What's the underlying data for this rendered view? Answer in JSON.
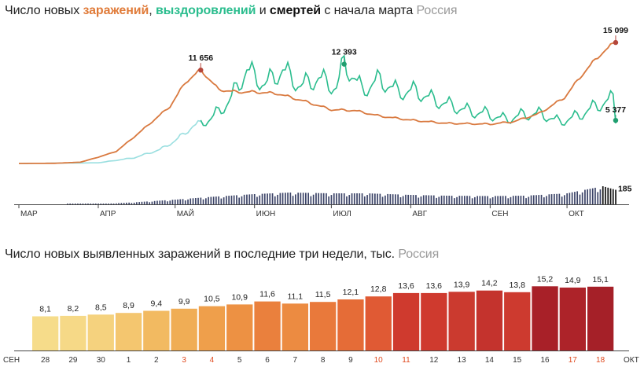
{
  "top_title": {
    "prefix": "Число новых ",
    "infections": "заражений",
    "comma": ", ",
    "recoveries": "выздоровлений",
    "and": " и ",
    "deaths": "смертей",
    "suffix": " с начала марта",
    "region": "Россия"
  },
  "bottom_title": {
    "text": "Число новых выявленных заражений в последние три недели, тыс.",
    "region": "Россия"
  },
  "colors": {
    "infections": "#d9793f",
    "recoveries": "#2bbd8e",
    "recoveries_early": "#9adfe0",
    "deaths_bars": "#3c4468",
    "deaths_last": "#111111",
    "axis": "#444444"
  },
  "chart_data": [
    {
      "type": "line",
      "title": "Число новых заражений, выздоровлений и смертей с начала марта",
      "x_ticks": [
        "МАР",
        "АПР",
        "МАЙ",
        "ИЮН",
        "ИЮЛ",
        "АВГ",
        "СЕН",
        "ОКТ"
      ],
      "x_range": [
        "2020-03-01",
        "2020-10-24"
      ],
      "y_range": [
        0,
        15500
      ],
      "grid": false,
      "series": [
        {
          "name": "заражений",
          "color": "#d9793f",
          "points": [
            [
              "2020-03-01",
              0
            ],
            [
              "2020-03-15",
              20
            ],
            [
              "2020-03-25",
              160
            ],
            [
              "2020-04-01",
              780
            ],
            [
              "2020-04-08",
              1500
            ],
            [
              "2020-04-15",
              3300
            ],
            [
              "2020-04-22",
              5200
            ],
            [
              "2020-04-29",
              7100
            ],
            [
              "2020-05-05",
              10100
            ],
            [
              "2020-05-11",
              11656
            ],
            [
              "2020-05-18",
              9200
            ],
            [
              "2020-05-25",
              8900
            ],
            [
              "2020-06-01",
              8900
            ],
            [
              "2020-06-10",
              8700
            ],
            [
              "2020-06-20",
              7800
            ],
            [
              "2020-07-01",
              6700
            ],
            [
              "2020-07-10",
              6600
            ],
            [
              "2020-07-20",
              5900
            ],
            [
              "2020-08-01",
              5400
            ],
            [
              "2020-08-15",
              5000
            ],
            [
              "2020-09-01",
              4900
            ],
            [
              "2020-09-10",
              5200
            ],
            [
              "2020-09-20",
              6200
            ],
            [
              "2020-09-30",
              8200
            ],
            [
              "2020-10-07",
              11100
            ],
            [
              "2020-10-14",
              13600
            ],
            [
              "2020-10-20",
              15099
            ]
          ]
        },
        {
          "name": "выздоровлений",
          "color": "#2bbd8e",
          "points": [
            [
              "2020-03-01",
              0
            ],
            [
              "2020-04-01",
              80
            ],
            [
              "2020-04-15",
              700
            ],
            [
              "2020-04-25",
              1700
            ],
            [
              "2020-05-01",
              2800
            ],
            [
              "2020-05-08",
              4600
            ],
            [
              "2020-05-15",
              5500
            ],
            [
              "2020-05-22",
              7600
            ],
            [
              "2020-05-29",
              11500
            ],
            [
              "2020-06-05",
              9700
            ],
            [
              "2020-06-12",
              11500
            ],
            [
              "2020-06-19",
              9500
            ],
            [
              "2020-06-26",
              10500
            ],
            [
              "2020-07-03",
              9300
            ],
            [
              "2020-07-06",
              12393
            ],
            [
              "2020-07-13",
              9000
            ],
            [
              "2020-07-20",
              10300
            ],
            [
              "2020-07-27",
              8800
            ],
            [
              "2020-08-03",
              8900
            ],
            [
              "2020-08-10",
              7800
            ],
            [
              "2020-08-17",
              7100
            ],
            [
              "2020-08-24",
              6400
            ],
            [
              "2020-08-31",
              6100
            ],
            [
              "2020-09-07",
              5400
            ],
            [
              "2020-09-14",
              6000
            ],
            [
              "2020-09-21",
              6100
            ],
            [
              "2020-09-28",
              5100
            ],
            [
              "2020-10-05",
              5800
            ],
            [
              "2020-10-12",
              7000
            ],
            [
              "2020-10-19",
              8000
            ],
            [
              "2020-10-20",
              5377
            ]
          ]
        },
        {
          "name": "смертей",
          "type": "bar",
          "color": "#3c4468",
          "last_value": 185,
          "points": [
            [
              "2020-03-15",
              0
            ],
            [
              "2020-04-01",
              4
            ],
            [
              "2020-04-15",
              25
            ],
            [
              "2020-05-01",
              60
            ],
            [
              "2020-05-15",
              95
            ],
            [
              "2020-06-01",
              130
            ],
            [
              "2020-06-15",
              150
            ],
            [
              "2020-07-01",
              140
            ],
            [
              "2020-07-15",
              140
            ],
            [
              "2020-08-01",
              120
            ],
            [
              "2020-08-15",
              110
            ],
            [
              "2020-09-01",
              105
            ],
            [
              "2020-09-15",
              110
            ],
            [
              "2020-10-01",
              140
            ],
            [
              "2020-10-15",
              230
            ],
            [
              "2020-10-20",
              185
            ]
          ]
        }
      ],
      "annotations": [
        {
          "label": "11 656",
          "series": "заражений",
          "x": "2020-05-11",
          "y": 11656
        },
        {
          "label": "12 393",
          "series": "выздоровлений",
          "x": "2020-07-06",
          "y": 12393
        },
        {
          "label": "15 099",
          "series": "заражений",
          "x": "2020-10-20",
          "y": 15099
        },
        {
          "label": "5 377",
          "series": "выздоровлений",
          "x": "2020-10-20",
          "y": 5377
        },
        {
          "label": "185",
          "series": "смертей",
          "x": "2020-10-20",
          "y": 185
        }
      ]
    },
    {
      "type": "bar",
      "title": "Число новых выявленных заражений в последние три недели, тыс.",
      "month_start": "СЕН",
      "month_end": "ОКТ",
      "categories": [
        "28",
        "29",
        "30",
        "1",
        "2",
        "3",
        "4",
        "5",
        "6",
        "7",
        "8",
        "9",
        "10",
        "11",
        "12",
        "13",
        "14",
        "15",
        "16",
        "17",
        "18"
      ],
      "values": [
        8.1,
        8.2,
        8.5,
        8.9,
        9.4,
        9.9,
        10.5,
        10.9,
        11.6,
        11.1,
        11.5,
        12.1,
        12.8,
        13.6,
        13.6,
        13.9,
        14.2,
        13.8,
        15.2,
        14.9,
        15.1
      ],
      "value_labels": [
        "8,1",
        "8,2",
        "8,5",
        "8,9",
        "9,4",
        "9,9",
        "10,5",
        "10,9",
        "11,6",
        "11,1",
        "11,5",
        "12,1",
        "12,8",
        "13,6",
        "13,6",
        "13,9",
        "14,2",
        "13,8",
        "15,2",
        "14,9",
        "15,1"
      ],
      "weekend": [
        false,
        false,
        false,
        false,
        false,
        true,
        true,
        false,
        false,
        false,
        false,
        false,
        true,
        true,
        false,
        false,
        false,
        false,
        false,
        true,
        true
      ],
      "colors": [
        "#f6dc8a",
        "#f6d987",
        "#f5d27e",
        "#f4c66f",
        "#f2ba61",
        "#f0ad55",
        "#ef9f4b",
        "#ed9143",
        "#ea803d",
        "#ec8b41",
        "#e9793b",
        "#e56c37",
        "#e05a34",
        "#cf3a2e",
        "#cf3a2e",
        "#cb3a2f",
        "#c4332d",
        "#cd3a2f",
        "#a82028",
        "#ad2329",
        "#a52028"
      ],
      "ylim": [
        0,
        16
      ]
    }
  ]
}
